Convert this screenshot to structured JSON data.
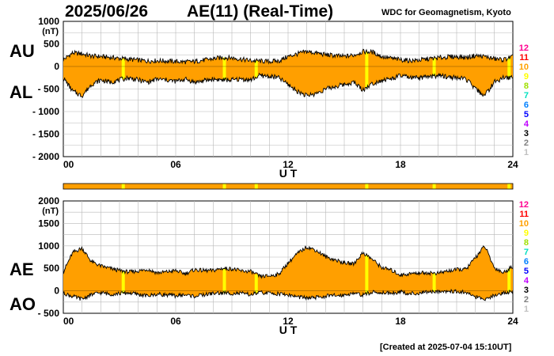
{
  "header": {
    "date": "2025/06/26",
    "title": "AE(11) (Real-Time)",
    "organization": "WDC for Geomagnetism, Kyoto",
    "created": "[Created at 2025-07-04 15:10UT]"
  },
  "chart_data": [
    {
      "type": "area",
      "panel": "AU/AL",
      "labels": [
        "AU",
        "AL"
      ],
      "unit": "(nT)",
      "ylim": [
        -2000,
        1000
      ],
      "yticks": [
        1000,
        500,
        0,
        -500,
        -1000,
        -1500,
        -2000
      ],
      "ytick_labels": [
        "1000",
        "500",
        "0",
        "- 500",
        "- 1000",
        "- 1500",
        "- 2000"
      ],
      "xlim": [
        0,
        24
      ],
      "xticks": [
        "00",
        "06",
        "12",
        "18",
        "24"
      ],
      "xlabel": "U T",
      "grid": true,
      "fill_color": "#ff9f00",
      "series": [
        {
          "name": "AU",
          "x": [
            0,
            0.5,
            1,
            1.5,
            2,
            2.5,
            3,
            3.5,
            4,
            4.5,
            5,
            5.5,
            6,
            6.5,
            7,
            7.5,
            8,
            8.5,
            9,
            9.5,
            10,
            10.5,
            11,
            11.5,
            12,
            12.5,
            13,
            13.5,
            14,
            14.5,
            15,
            15.5,
            16,
            16.5,
            17,
            17.5,
            18,
            18.5,
            19,
            19.5,
            20,
            20.5,
            21,
            21.5,
            22,
            22.5,
            23,
            23.5,
            24
          ],
          "values": [
            150,
            300,
            280,
            230,
            220,
            200,
            180,
            160,
            140,
            120,
            130,
            120,
            110,
            100,
            110,
            140,
            170,
            200,
            190,
            160,
            130,
            120,
            110,
            120,
            220,
            280,
            330,
            300,
            260,
            240,
            220,
            250,
            330,
            320,
            220,
            180,
            150,
            130,
            140,
            170,
            190,
            210,
            220,
            200,
            240,
            220,
            170,
            150,
            220
          ]
        },
        {
          "name": "AL",
          "x": [
            0,
            0.5,
            1,
            1.5,
            2,
            2.5,
            3,
            3.5,
            4,
            4.5,
            5,
            5.5,
            6,
            6.5,
            7,
            7.5,
            8,
            8.5,
            9,
            9.5,
            10,
            10.5,
            11,
            11.5,
            12,
            12.5,
            13,
            13.5,
            14,
            14.5,
            15,
            15.5,
            16,
            16.5,
            17,
            17.5,
            18,
            18.5,
            19,
            19.5,
            20,
            20.5,
            21,
            21.5,
            22,
            22.5,
            23,
            23.5,
            24
          ],
          "values": [
            -250,
            -550,
            -650,
            -400,
            -300,
            -350,
            -300,
            -250,
            -300,
            -350,
            -280,
            -300,
            -330,
            -280,
            -350,
            -320,
            -280,
            -300,
            -300,
            -280,
            -300,
            -200,
            -220,
            -250,
            -400,
            -550,
            -650,
            -600,
            -500,
            -450,
            -400,
            -350,
            -520,
            -380,
            -300,
            -280,
            -200,
            -250,
            -260,
            -230,
            -200,
            -230,
            -250,
            -280,
            -500,
            -650,
            -350,
            -250,
            -250
          ]
        }
      ],
      "hour_color_legend": [
        "12",
        "11",
        "10",
        "9",
        "8",
        "7",
        "6",
        "5",
        "4",
        "3",
        "2",
        "1"
      ],
      "hour_colors": [
        "#ff0090",
        "#ff0000",
        "#ffa000",
        "#ffff00",
        "#a0e000",
        "#00e0c0",
        "#0080ff",
        "#0000ff",
        "#c000ff",
        "#000000",
        "#808080",
        "#c0c0c0"
      ],
      "marker_color": "#ffff00",
      "marker_hours": [
        3.2,
        8.6,
        10.3,
        16.2,
        19.8,
        23.8
      ]
    },
    {
      "type": "area",
      "panel": "AE/AO",
      "labels": [
        "AE",
        "AO"
      ],
      "unit": "(nT)",
      "ylim": [
        -500,
        2000
      ],
      "yticks": [
        2000,
        1500,
        1000,
        500,
        0,
        -500
      ],
      "ytick_labels": [
        "2000",
        "1500",
        "1000",
        "500",
        "0",
        "- 500"
      ],
      "xlim": [
        0,
        24
      ],
      "xticks": [
        "00",
        "06",
        "12",
        "18",
        "24"
      ],
      "xlabel": "U T",
      "grid": true,
      "fill_color": "#ff9f00",
      "series": [
        {
          "name": "AE",
          "x": [
            0,
            0.5,
            1,
            1.5,
            2,
            2.5,
            3,
            3.5,
            4,
            4.5,
            5,
            5.5,
            6,
            6.5,
            7,
            7.5,
            8,
            8.5,
            9,
            9.5,
            10,
            10.5,
            11,
            11.5,
            12,
            12.5,
            13,
            13.5,
            14,
            14.5,
            15,
            15.5,
            16,
            16.5,
            17,
            17.5,
            18,
            18.5,
            19,
            19.5,
            20,
            20.5,
            21,
            21.5,
            22,
            22.5,
            23,
            23.5,
            24
          ],
          "values": [
            420,
            850,
            950,
            650,
            550,
            500,
            450,
            420,
            440,
            480,
            400,
            420,
            450,
            380,
            470,
            450,
            450,
            500,
            490,
            440,
            430,
            320,
            330,
            370,
            620,
            830,
            980,
            900,
            760,
            690,
            620,
            600,
            850,
            700,
            520,
            460,
            350,
            380,
            400,
            400,
            390,
            440,
            470,
            480,
            740,
            1000,
            520,
            400,
            550
          ]
        },
        {
          "name": "AO",
          "x": [
            0,
            0.5,
            1,
            1.5,
            2,
            2.5,
            3,
            3.5,
            4,
            4.5,
            5,
            5.5,
            6,
            6.5,
            7,
            7.5,
            8,
            8.5,
            9,
            9.5,
            10,
            10.5,
            11,
            11.5,
            12,
            12.5,
            13,
            13.5,
            14,
            14.5,
            15,
            15.5,
            16,
            16.5,
            17,
            17.5,
            18,
            18.5,
            19,
            19.5,
            20,
            20.5,
            21,
            21.5,
            22,
            22.5,
            23,
            23.5,
            24
          ],
          "values": [
            -50,
            -125,
            -185,
            -85,
            -40,
            -75,
            -60,
            -45,
            -80,
            -115,
            -75,
            -90,
            -110,
            -90,
            -120,
            -90,
            -55,
            -50,
            -55,
            -60,
            -85,
            -40,
            -55,
            -65,
            -90,
            -135,
            -160,
            -150,
            -120,
            -105,
            -90,
            -50,
            -95,
            -30,
            -40,
            -50,
            -25,
            -60,
            -60,
            -30,
            -5,
            -10,
            -15,
            -40,
            -130,
            -215,
            -90,
            -50,
            -15
          ]
        }
      ],
      "marker_hours": [
        3.2,
        8.6,
        10.3,
        16.2,
        19.8,
        23.8
      ]
    }
  ]
}
